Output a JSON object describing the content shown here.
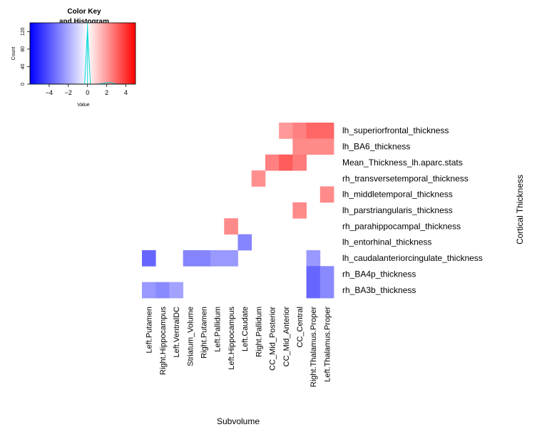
{
  "chart_data": [
    {
      "type": "histogram",
      "title_lines": [
        "Color Key",
        "and Histogram"
      ],
      "xlabel": "Value",
      "ylabel": "Count",
      "xlim": [
        -6,
        5
      ],
      "ylim": [
        0,
        140
      ],
      "xticks": [
        -4,
        -2,
        0,
        2,
        4
      ],
      "xtick_labels": [
        "−4",
        "−2",
        "0",
        "2",
        "4"
      ],
      "yticks": [
        0,
        40,
        80,
        120
      ],
      "colors": {
        "low": "#0000ff",
        "mid": "#ffffff",
        "high": "#ff0000",
        "trace": "#00d8d8"
      },
      "trace_x": [
        -6,
        -4,
        -3,
        -2,
        -1,
        -0.3,
        0,
        0.3,
        1,
        1.5,
        2,
        2.3,
        2.7,
        3,
        4,
        5
      ],
      "trace_y": [
        0,
        0,
        0,
        0,
        0,
        0,
        128,
        0,
        0,
        1,
        3,
        4,
        2,
        0,
        0,
        0
      ]
    },
    {
      "type": "heatmap",
      "xlabel": "Subvolume",
      "ylabel": "Cortical Thickness",
      "columns": [
        "Left.Putamen",
        "Right.Hippocampus",
        "Left.VentralDC",
        "Striatum_Volume",
        "Right.Putamen",
        "Left.Pallidum",
        "Left.Hippocampus",
        "Left.Caudate",
        "Right.Pallidum",
        "CC_Mid_Posterior",
        "CC_Mid_Anterior",
        "CC_Central",
        "Right.Thalamus.Proper",
        "Left.Thalamus.Proper"
      ],
      "rows": [
        "lh_superiorfrontal_thickness",
        "lh_BA6_thickness",
        "Mean_Thickness_lh.aparc.stats",
        "rh_transversetemporal_thickness",
        "lh_middletemporal_thickness",
        "lh_parstriangularis_thickness",
        "rh_parahippocampal_thickness",
        "lh_entorhinal_thickness",
        "lh_caudalanteriorcingulate_thickness",
        "rh_BA4p_thickness",
        "rh_BA3b_thickness"
      ],
      "value_range": [
        -5,
        5
      ],
      "values": [
        [
          null,
          null,
          null,
          null,
          null,
          null,
          null,
          null,
          null,
          null,
          2.0,
          2.5,
          3.0,
          3.0
        ],
        [
          null,
          null,
          null,
          null,
          null,
          null,
          null,
          null,
          null,
          null,
          null,
          2.3,
          2.3,
          2.3
        ],
        [
          null,
          null,
          null,
          null,
          null,
          null,
          null,
          null,
          null,
          2.5,
          3.2,
          2.6,
          null,
          null
        ],
        [
          null,
          null,
          null,
          null,
          null,
          null,
          null,
          null,
          2.2,
          null,
          null,
          null,
          null,
          null
        ],
        [
          null,
          null,
          null,
          null,
          null,
          null,
          null,
          null,
          null,
          null,
          null,
          null,
          null,
          2.3
        ],
        [
          null,
          null,
          null,
          null,
          null,
          null,
          null,
          null,
          null,
          null,
          null,
          2.3,
          null,
          null
        ],
        [
          null,
          null,
          null,
          null,
          null,
          null,
          2.3,
          null,
          null,
          null,
          null,
          null,
          null,
          null
        ],
        [
          null,
          null,
          null,
          null,
          null,
          null,
          null,
          -2.4,
          null,
          null,
          null,
          null,
          null,
          null
        ],
        [
          -3.0,
          null,
          null,
          -2.4,
          -2.4,
          -2.0,
          -2.0,
          null,
          null,
          null,
          null,
          null,
          -2.0,
          null
        ],
        [
          null,
          null,
          null,
          null,
          null,
          null,
          null,
          null,
          null,
          null,
          null,
          null,
          -3.0,
          -2.3
        ],
        [
          -2.0,
          -2.3,
          -1.8,
          null,
          null,
          null,
          null,
          null,
          null,
          null,
          null,
          null,
          -3.0,
          -2.3
        ]
      ]
    }
  ]
}
